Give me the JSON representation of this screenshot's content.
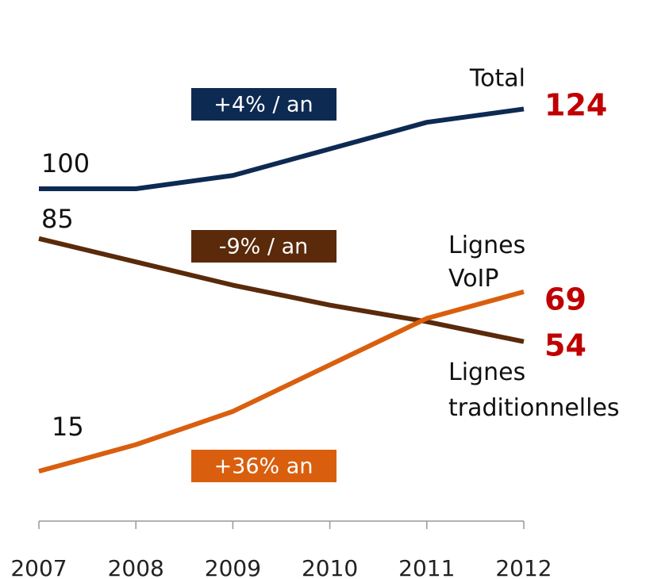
{
  "chart_data": {
    "type": "line",
    "categories": [
      "2007",
      "2008",
      "2009",
      "2010",
      "2011",
      "2012"
    ],
    "series": [
      {
        "name": "Total",
        "color": "#0d2a52",
        "values": [
          100,
          100,
          104,
          112,
          120,
          124
        ]
      },
      {
        "name": "Lignes traditionnelles",
        "color": "#5a2a0a",
        "values": [
          85,
          78,
          71,
          65,
          60,
          54
        ]
      },
      {
        "name": "Lignes VoIP",
        "color": "#d95f0e",
        "values": [
          15,
          23,
          33,
          47,
          61,
          69
        ]
      }
    ],
    "annotations": [
      {
        "text": "+4% / an",
        "color": "#0d2a52"
      },
      {
        "text": "-9% / an",
        "color": "#5a2a0a"
      },
      {
        "text": "+36%  an",
        "color": "#d95f0e"
      }
    ],
    "end_label_color": "#c00000",
    "ylim": [
      0,
      150
    ]
  }
}
